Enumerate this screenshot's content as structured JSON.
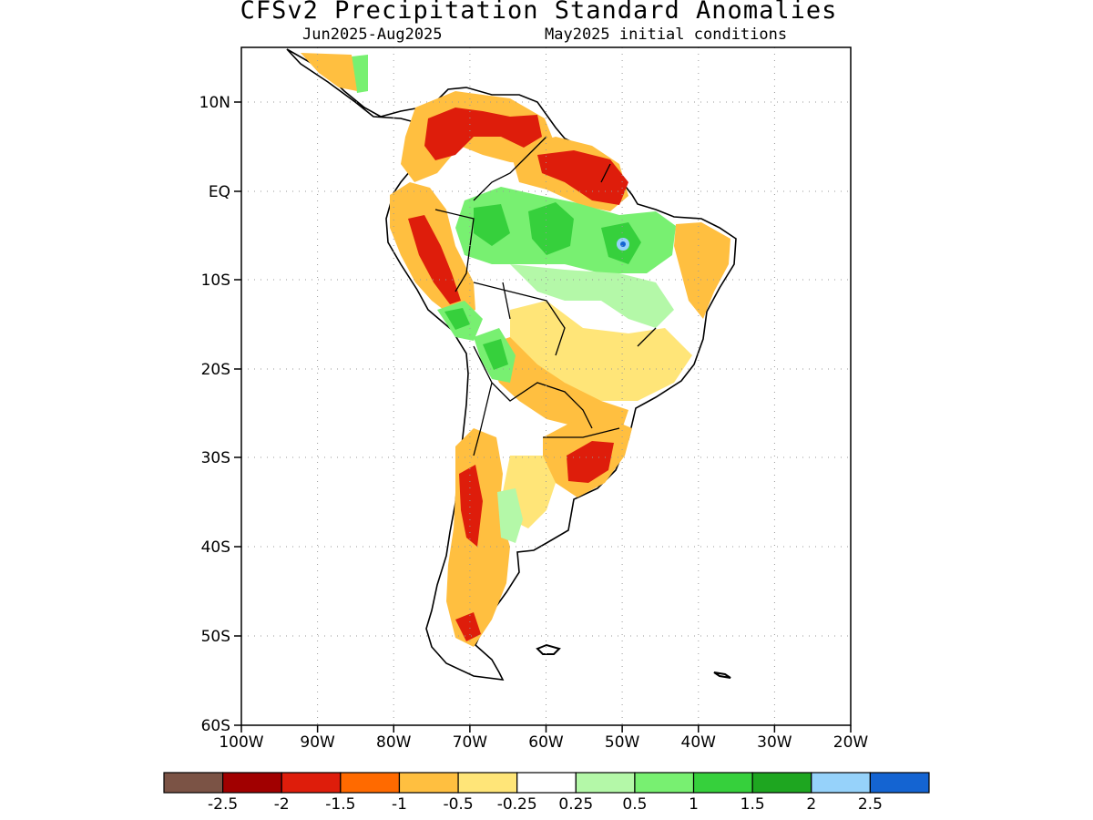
{
  "header": {
    "title": "CFSv2 Precipitation Standard Anomalies",
    "period": "Jun2025-Aug2025",
    "init": "May2025 initial conditions"
  },
  "map": {
    "region": "South America",
    "lon_range": [
      -100,
      -20
    ],
    "lat_range": [
      -60,
      16
    ],
    "grid": "dotted",
    "x_ticks": [
      "100W",
      "90W",
      "80W",
      "70W",
      "60W",
      "50W",
      "40W",
      "30W",
      "20W"
    ],
    "y_ticks": [
      "10N",
      "EQ",
      "10S",
      "20S",
      "30S",
      "40S",
      "50S",
      "60S"
    ]
  },
  "colorbar": {
    "colors": [
      "#7b5345",
      "#a10000",
      "#de1d0b",
      "#ff6a00",
      "#ffbf40",
      "#ffe578",
      "#ffffff",
      "#b4f8a8",
      "#78f071",
      "#36d03c",
      "#1ea620",
      "#96d2fa",
      "#1464d2"
    ],
    "labels": [
      "-2.5",
      "-2",
      "-1.5",
      "-1",
      "-0.5",
      "-0.25",
      "0.25",
      "0.5",
      "1",
      "1.5",
      "2",
      "2.5"
    ]
  }
}
